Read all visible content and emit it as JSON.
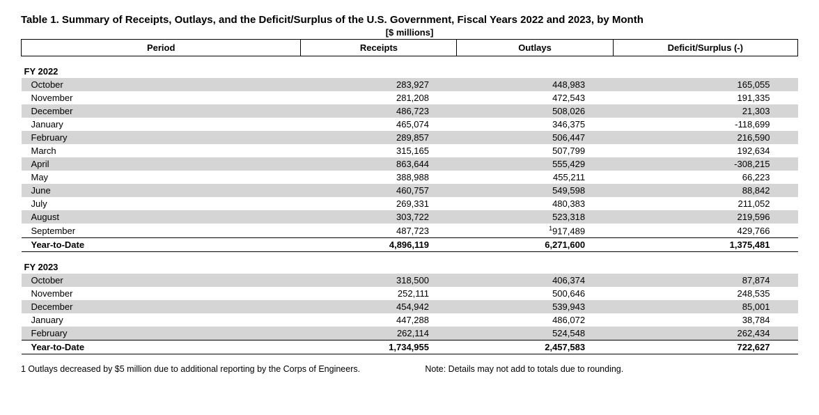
{
  "title": "Table 1. Summary of Receipts, Outlays, and the Deficit/Surplus of the U.S. Government, Fiscal Years 2022 and 2023, by Month",
  "subtitle": "[$ millions]",
  "columns": {
    "period": "Period",
    "receipts": "Receipts",
    "outlays": "Outlays",
    "deficit": "Deficit/Surplus (-)"
  },
  "groups": [
    {
      "label": "FY 2022",
      "rows": [
        {
          "period": "October",
          "receipts": "283,927",
          "outlays": "448,983",
          "deficit": "165,055"
        },
        {
          "period": "November",
          "receipts": "281,208",
          "outlays": "472,543",
          "deficit": "191,335"
        },
        {
          "period": "December",
          "receipts": "486,723",
          "outlays": "508,026",
          "deficit": "21,303"
        },
        {
          "period": "January",
          "receipts": "465,074",
          "outlays": "346,375",
          "deficit": "-118,699"
        },
        {
          "period": "February",
          "receipts": "289,857",
          "outlays": "506,447",
          "deficit": "216,590"
        },
        {
          "period": "March",
          "receipts": "315,165",
          "outlays": "507,799",
          "deficit": "192,634"
        },
        {
          "period": "April",
          "receipts": "863,644",
          "outlays": "555,429",
          "deficit": "-308,215"
        },
        {
          "period": "May",
          "receipts": "388,988",
          "outlays": "455,211",
          "deficit": "66,223"
        },
        {
          "period": "June",
          "receipts": "460,757",
          "outlays": "549,598",
          "deficit": "88,842"
        },
        {
          "period": "July",
          "receipts": "269,331",
          "outlays": "480,383",
          "deficit": "211,052"
        },
        {
          "period": "August",
          "receipts": "303,722",
          "outlays": "523,318",
          "deficit": "219,596"
        },
        {
          "period": "September",
          "receipts": "487,723",
          "outlays": "917,489",
          "outlays_sup": "1",
          "deficit": "429,766"
        }
      ],
      "ytd": {
        "period": "Year-to-Date",
        "receipts": "4,896,119",
        "outlays": "6,271,600",
        "deficit": "1,375,481"
      }
    },
    {
      "label": "FY 2023",
      "rows": [
        {
          "period": "October",
          "receipts": "318,500",
          "outlays": "406,374",
          "deficit": "87,874"
        },
        {
          "period": "November",
          "receipts": "252,111",
          "outlays": "500,646",
          "deficit": "248,535"
        },
        {
          "period": "December",
          "receipts": "454,942",
          "outlays": "539,943",
          "deficit": "85,001"
        },
        {
          "period": "January",
          "receipts": "447,288",
          "outlays": "486,072",
          "deficit": "38,784"
        },
        {
          "period": "February",
          "receipts": "262,114",
          "outlays": "524,548",
          "deficit": "262,434"
        }
      ],
      "ytd": {
        "period": "Year-to-Date",
        "receipts": "1,734,955",
        "outlays": "2,457,583",
        "deficit": "722,627"
      }
    }
  ],
  "footnote_left": "1 Outlays decreased by $5 million due to additional reporting by the Corps of Engineers.",
  "footnote_right": "Note: Details may not add to totals due to rounding.",
  "style": {
    "shade_color": "#d5d5d5",
    "border_color": "#000000",
    "font_size_body": 13,
    "font_size_title": 15
  }
}
